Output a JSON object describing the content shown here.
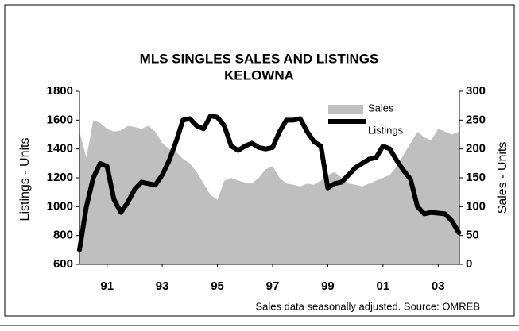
{
  "chart_data": {
    "type": "line",
    "title": "MLS SINGLES SALES AND LISTINGS",
    "subtitle": "KELOWNA",
    "ylabel": "Listings - Units",
    "y2label": "Sales - Units",
    "note": "Sales data seasonally adjusted.  Source: OMREB",
    "legend": "upper right",
    "x": [
      1990,
      1990.25,
      1990.5,
      1990.75,
      1991,
      1991.25,
      1991.5,
      1991.75,
      1992,
      1992.25,
      1992.5,
      1992.75,
      1993,
      1993.25,
      1993.5,
      1993.75,
      1994,
      1994.25,
      1994.5,
      1994.75,
      1995,
      1995.25,
      1995.5,
      1995.75,
      1996,
      1996.25,
      1996.5,
      1996.75,
      1997,
      1997.25,
      1997.5,
      1997.75,
      1998,
      1998.25,
      1998.5,
      1998.75,
      1999,
      1999.25,
      1999.5,
      1999.75,
      2000,
      2000.25,
      2000.5,
      2000.75,
      2001,
      2001.25,
      2001.5,
      2001.75,
      2002,
      2002.25,
      2002.5,
      2002.75,
      2003,
      2003.25,
      2003.5,
      2003.75
    ],
    "series": [
      {
        "name": "Sales",
        "type": "area",
        "axis": "y2",
        "color": "#bfbfbf",
        "values": [
          230,
          185,
          250,
          245,
          235,
          230,
          232,
          240,
          238,
          235,
          240,
          230,
          210,
          200,
          195,
          183,
          175,
          160,
          140,
          120,
          112,
          145,
          150,
          145,
          142,
          140,
          150,
          165,
          170,
          150,
          140,
          138,
          135,
          140,
          138,
          145,
          155,
          160,
          150,
          140,
          138,
          135,
          140,
          145,
          150,
          155,
          170,
          190,
          210,
          230,
          220,
          215,
          235,
          230,
          225,
          230
        ]
      },
      {
        "name": "Listings",
        "type": "line",
        "color": "#000000",
        "values": [
          700,
          1000,
          1200,
          1300,
          1280,
          1050,
          960,
          1030,
          1120,
          1170,
          1160,
          1150,
          1220,
          1320,
          1450,
          1600,
          1610,
          1560,
          1540,
          1630,
          1620,
          1560,
          1420,
          1390,
          1420,
          1440,
          1410,
          1400,
          1410,
          1520,
          1600,
          1600,
          1610,
          1520,
          1450,
          1420,
          1130,
          1160,
          1170,
          1220,
          1270,
          1300,
          1330,
          1340,
          1420,
          1400,
          1320,
          1250,
          1190,
          1000,
          950,
          960,
          955,
          950,
          900,
          820
        ]
      }
    ],
    "xlim": [
      1990,
      2003.77
    ],
    "xticks": [
      {
        "value": 1991,
        "label": "91"
      },
      {
        "value": 1993,
        "label": "93"
      },
      {
        "value": 1995,
        "label": "95"
      },
      {
        "value": 1997,
        "label": "97"
      },
      {
        "value": 1999,
        "label": "99"
      },
      {
        "value": 2001,
        "label": "01"
      },
      {
        "value": 2003,
        "label": "03"
      }
    ],
    "ylim": [
      600,
      1800
    ],
    "yticks": [
      600,
      800,
      1000,
      1200,
      1400,
      1600,
      1800
    ],
    "y2lim": [
      0,
      300
    ],
    "y2ticks": [
      0,
      50,
      100,
      150,
      200,
      250,
      300
    ],
    "grid": false
  }
}
